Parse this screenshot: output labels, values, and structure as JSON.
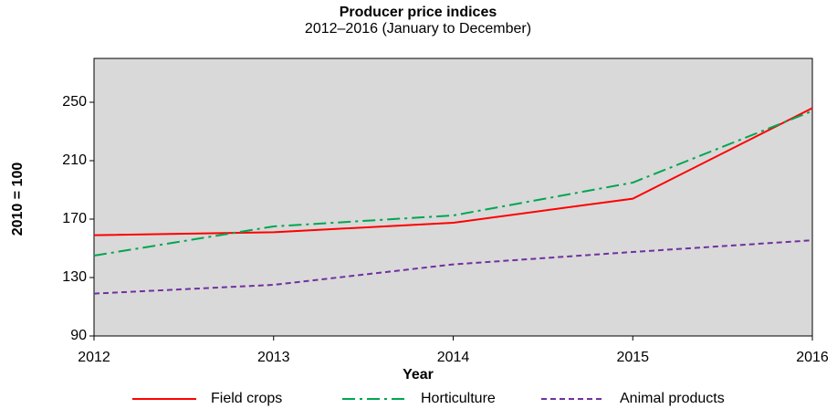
{
  "chart_data": {
    "type": "line",
    "title": "Producer price indices",
    "subtitle": "2012–2016 (January to December)",
    "x_label": "Year",
    "y_label": "2010 = 100",
    "x": [
      2012,
      2013,
      2014,
      2015,
      2016
    ],
    "xlim": [
      2012,
      2016
    ],
    "xticks": [
      2012,
      2013,
      2014,
      2015,
      2016
    ],
    "ylim": [
      90,
      280
    ],
    "yticks": [
      90,
      130,
      170,
      210,
      250
    ],
    "grid": false,
    "legend": "bottom",
    "series": [
      {
        "name": "Field crops",
        "color": "#ff0000",
        "dash": "solid",
        "values": [
          159,
          161,
          167.5,
          184,
          246
        ]
      },
      {
        "name": "Horticulture",
        "color": "#00a651",
        "dash": "dashdot",
        "values": [
          145,
          165,
          172.5,
          195,
          244
        ]
      },
      {
        "name": "Animal products",
        "color": "#7030a0",
        "dash": "dashed",
        "values": [
          119,
          125,
          139,
          147.5,
          155.5
        ]
      }
    ]
  }
}
